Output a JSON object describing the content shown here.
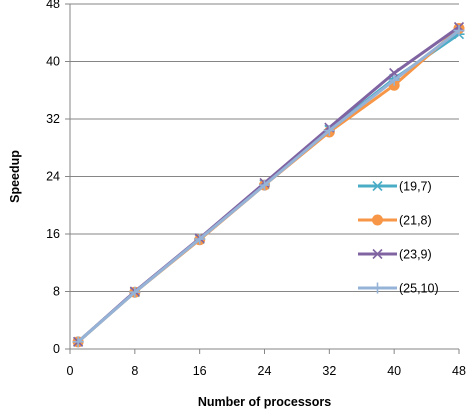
{
  "chart_data": {
    "type": "line",
    "title": "",
    "xlabel": "Number of processors",
    "ylabel": "Speedup",
    "xlim": [
      0,
      48
    ],
    "ylim": [
      0,
      48
    ],
    "xticks": [
      0,
      8,
      16,
      24,
      32,
      40,
      48
    ],
    "yticks": [
      0,
      8,
      16,
      24,
      32,
      40,
      48
    ],
    "grid": "horizontal",
    "legend_position": "right",
    "x": [
      1,
      8,
      16,
      24,
      32,
      40,
      48
    ],
    "series": [
      {
        "name": "(19,7)",
        "marker": "asterisk",
        "color": "#4bacc6",
        "values": [
          1,
          7.9,
          15.3,
          22.9,
          30.5,
          37.6,
          43.8
        ]
      },
      {
        "name": "(21,8)",
        "marker": "circle",
        "color": "#f79646",
        "values": [
          1,
          7.9,
          15.2,
          22.8,
          30.2,
          36.7,
          44.6
        ]
      },
      {
        "name": "(23,9)",
        "marker": "x",
        "color": "#8064a2",
        "values": [
          1,
          8.0,
          15.4,
          23.1,
          30.8,
          38.4,
          44.8
        ]
      },
      {
        "name": "(25,10)",
        "marker": "plus",
        "color": "#95b3d7",
        "values": [
          1,
          7.9,
          15.3,
          22.8,
          30.4,
          37.4,
          44.3
        ]
      }
    ]
  }
}
